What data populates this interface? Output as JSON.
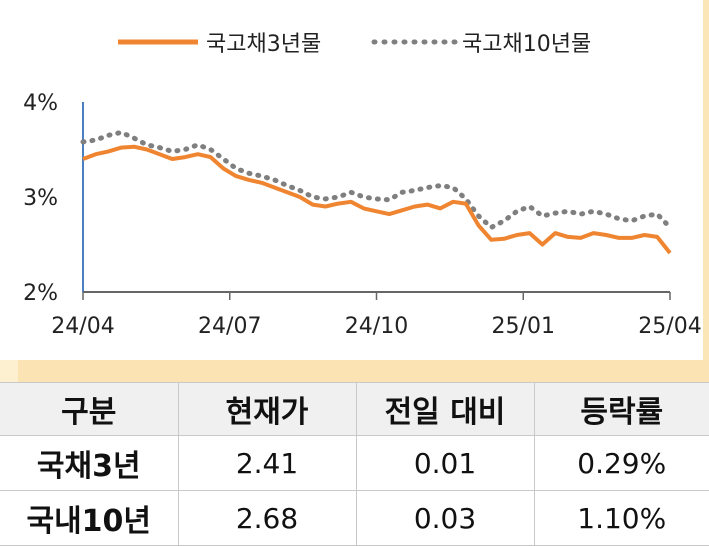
{
  "chart_data": {
    "type": "line",
    "x_ticks": [
      "24/04",
      "24/07",
      "24/10",
      "25/01",
      "25/04"
    ],
    "y_ticks": [
      "4%",
      "3%",
      "2%"
    ],
    "ylim": [
      2,
      4
    ],
    "legend_position": "top",
    "series": [
      {
        "name": "국고채3년물",
        "color": "#ef8530",
        "style": "solid",
        "values": [
          3.4,
          3.45,
          3.48,
          3.52,
          3.53,
          3.5,
          3.45,
          3.4,
          3.42,
          3.45,
          3.42,
          3.3,
          3.22,
          3.18,
          3.15,
          3.1,
          3.05,
          3.0,
          2.92,
          2.9,
          2.93,
          2.95,
          2.88,
          2.85,
          2.82,
          2.86,
          2.9,
          2.92,
          2.88,
          2.95,
          2.93,
          2.7,
          2.55,
          2.56,
          2.6,
          2.62,
          2.5,
          2.62,
          2.58,
          2.57,
          2.62,
          2.6,
          2.57,
          2.57,
          2.6,
          2.58,
          2.41
        ]
      },
      {
        "name": "국고채10년물",
        "color": "#7f7f7f",
        "style": "dotted",
        "values": [
          3.58,
          3.6,
          3.65,
          3.68,
          3.62,
          3.55,
          3.52,
          3.48,
          3.5,
          3.55,
          3.5,
          3.4,
          3.3,
          3.25,
          3.22,
          3.18,
          3.12,
          3.07,
          3.0,
          2.98,
          3.0,
          3.05,
          3.0,
          2.98,
          2.97,
          3.05,
          3.07,
          3.1,
          3.12,
          3.1,
          2.98,
          2.8,
          2.68,
          2.75,
          2.85,
          2.9,
          2.8,
          2.83,
          2.85,
          2.82,
          2.85,
          2.82,
          2.77,
          2.75,
          2.8,
          2.82,
          2.68
        ]
      }
    ]
  },
  "table": {
    "headers": [
      "구분",
      "현재가",
      "전일 대비",
      "등락률"
    ],
    "rows": [
      [
        "국채3년",
        "2.41",
        "0.01",
        "0.29%"
      ],
      [
        "국내10년",
        "2.68",
        "0.03",
        "1.10%"
      ]
    ]
  }
}
